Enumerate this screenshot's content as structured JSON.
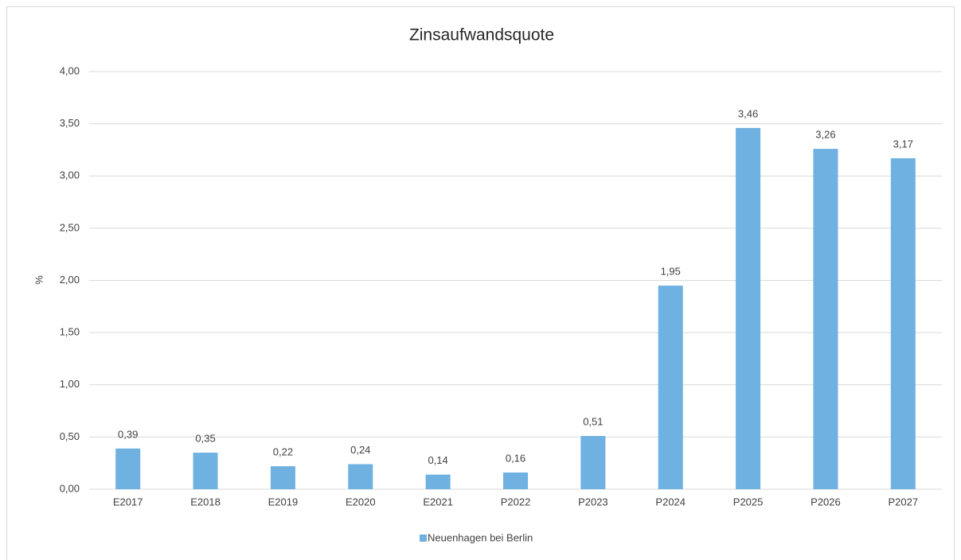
{
  "chart_data": {
    "type": "bar",
    "title": "Zinsaufwandsquote",
    "y_label": "%",
    "categories": [
      "E2017",
      "E2018",
      "E2019",
      "E2020",
      "E2021",
      "P2022",
      "P2023",
      "P2024",
      "P2025",
      "P2026",
      "P2027"
    ],
    "series": [
      {
        "name": "Neuenhagen bei Berlin",
        "color": "#6fb1e0",
        "values": [
          0.39,
          0.35,
          0.22,
          0.24,
          0.14,
          0.16,
          0.51,
          1.95,
          3.46,
          3.26,
          3.17
        ],
        "value_labels": [
          "0,39",
          "0,35",
          "0,22",
          "0,24",
          "0,14",
          "0,16",
          "0,51",
          "1,95",
          "3,46",
          "3,26",
          "3,17"
        ]
      }
    ],
    "ylim": [
      0,
      4
    ],
    "yticks": [
      {
        "value": 0,
        "label": "0,00"
      },
      {
        "value": 0.5,
        "label": "0,50"
      },
      {
        "value": 1,
        "label": "1,00"
      },
      {
        "value": 1.5,
        "label": "1,50"
      },
      {
        "value": 2,
        "label": "2,00"
      },
      {
        "value": 2.5,
        "label": "2,50"
      },
      {
        "value": 3,
        "label": "3,00"
      },
      {
        "value": 3.5,
        "label": "3,50"
      },
      {
        "value": 4,
        "label": "4,00"
      }
    ],
    "grid": true,
    "legend": "bottom"
  }
}
